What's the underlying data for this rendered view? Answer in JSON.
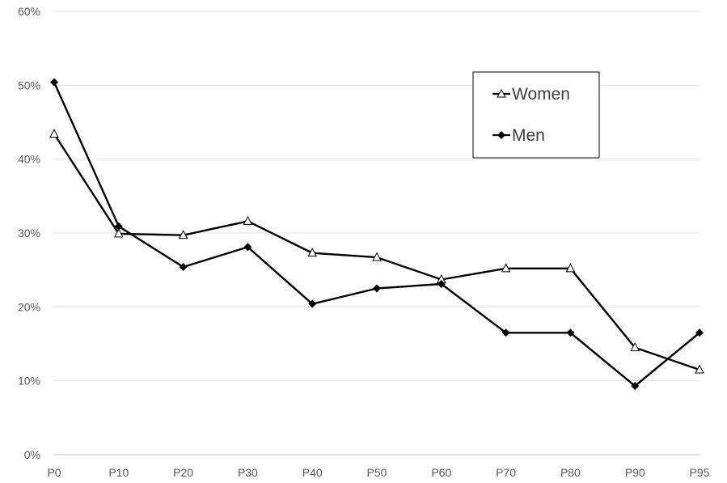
{
  "chart_data": {
    "type": "line",
    "categories": [
      "P0",
      "P10",
      "P20",
      "P30",
      "P40",
      "P50",
      "P60",
      "P70",
      "P80",
      "P90",
      "P95"
    ],
    "yticks": [
      "0%",
      "10%",
      "20%",
      "30%",
      "40%",
      "50%",
      "60%"
    ],
    "ylim": [
      0,
      60
    ],
    "grid": true,
    "legend_position": "top-right",
    "series": [
      {
        "name": "Women",
        "marker": "triangle",
        "color": "#000000",
        "values": [
          43.4,
          29.9,
          29.7,
          31.6,
          27.3,
          26.7,
          23.7,
          25.2,
          25.2,
          14.5,
          11.5
        ]
      },
      {
        "name": "Men",
        "marker": "diamond",
        "color": "#000000",
        "values": [
          50.4,
          30.9,
          25.4,
          28.1,
          20.4,
          22.5,
          23.1,
          16.5,
          16.5,
          9.3,
          16.5
        ]
      }
    ]
  }
}
